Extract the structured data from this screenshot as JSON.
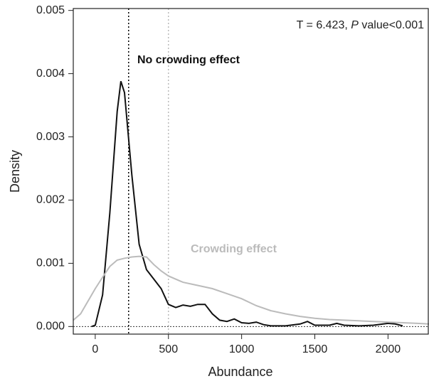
{
  "chart_data": {
    "type": "line",
    "xlabel": "Abundance",
    "ylabel": "Density",
    "stat_label": {
      "prefix": "T = 6.423, ",
      "italic": "P",
      "suffix": " value<0.001"
    },
    "xlim": [
      -150,
      2280
    ],
    "ylim": [
      -0.00012,
      0.00503
    ],
    "xticks": [
      0,
      500,
      1000,
      1500,
      2000
    ],
    "yticks": [
      {
        "value": 0,
        "label": "0.000"
      },
      {
        "value": 0.001,
        "label": "0.001"
      },
      {
        "value": 0.002,
        "label": "0.002"
      },
      {
        "value": 0.003,
        "label": "0.003"
      },
      {
        "value": 0.004,
        "label": "0.004"
      },
      {
        "value": 0.005,
        "label": "0.005"
      }
    ],
    "hline": {
      "value": 0,
      "color": "#333333"
    },
    "vlines": [
      {
        "value": 228,
        "color": "#000000"
      },
      {
        "value": 500,
        "color": "#bbbbbb"
      }
    ],
    "series": [
      {
        "name": "No crowding effect",
        "color": "#111111",
        "x": [
          -25,
          0,
          50,
          100,
          150,
          175,
          200,
          250,
          300,
          350,
          400,
          450,
          500,
          550,
          600,
          650,
          700,
          750,
          800,
          850,
          900,
          950,
          1000,
          1050,
          1100,
          1150,
          1200,
          1300,
          1400,
          1450,
          1500,
          1600,
          1650,
          1700,
          1800,
          1900,
          2000,
          2050,
          2100
        ],
        "values": [
          0,
          2e-05,
          0.0005,
          0.0018,
          0.0034,
          0.00388,
          0.0037,
          0.0024,
          0.0013,
          0.0009,
          0.00075,
          0.0006,
          0.00035,
          0.0003,
          0.00034,
          0.00032,
          0.00035,
          0.00035,
          0.0002,
          0.0001,
          8e-05,
          0.00012,
          6e-05,
          5e-05,
          7e-05,
          3e-05,
          1e-05,
          1e-05,
          4e-05,
          8e-05,
          2e-05,
          2e-05,
          5e-05,
          2e-05,
          1e-05,
          2e-05,
          5e-05,
          4e-05,
          1e-05
        ]
      },
      {
        "name": "Crowding effect",
        "color": "#bbbbbb",
        "x": [
          -150,
          -100,
          -50,
          0,
          50,
          100,
          150,
          200,
          250,
          300,
          350,
          400,
          450,
          500,
          600,
          700,
          800,
          900,
          1000,
          1100,
          1200,
          1300,
          1400,
          1500,
          1600,
          1800,
          2000,
          2200,
          2280
        ],
        "values": [
          0.0001,
          0.0002,
          0.0004,
          0.0006,
          0.00078,
          0.00095,
          0.00105,
          0.00108,
          0.0011,
          0.00111,
          0.0011,
          0.00098,
          0.00088,
          0.0008,
          0.0007,
          0.00065,
          0.0006,
          0.00052,
          0.00044,
          0.00033,
          0.00025,
          0.0002,
          0.00016,
          0.00013,
          0.00011,
          9e-05,
          7e-05,
          5e-05,
          4e-05
        ]
      }
    ]
  }
}
